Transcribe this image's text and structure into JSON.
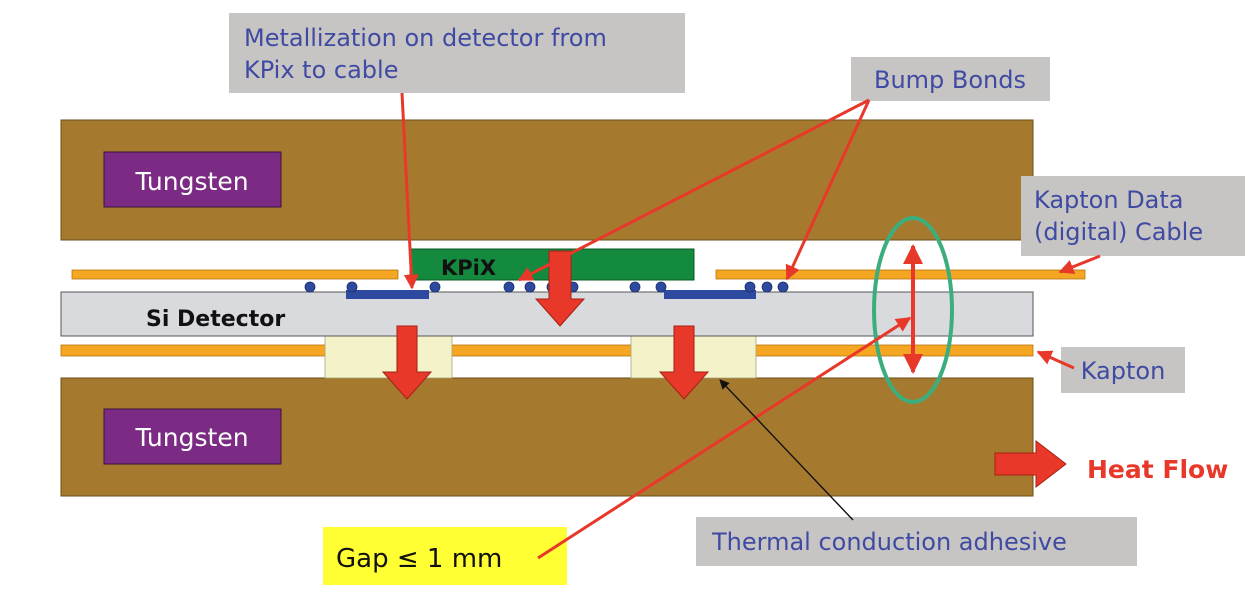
{
  "labels": {
    "metallization": [
      "Metallization on detector from",
      "KPix to cable"
    ],
    "bump_bonds": "Bump Bonds",
    "tungsten_top": "Tungsten",
    "tungsten_bottom": "Tungsten",
    "kpix": "KPiX",
    "si_detector": "Si Detector",
    "kapton_data_cable": [
      "Kapton Data",
      "(digital) Cable"
    ],
    "kapton": "Kapton",
    "heat_flow": "Heat Flow",
    "gap": "Gap ≤ 1 mm",
    "thermal_adhesive": "Thermal conduction adhesive"
  },
  "colors": {
    "tungsten": "#a67a2e",
    "tungsten_label_box": "#7b2b83",
    "kapton": "#f5a623",
    "kpix_chip": "#138a3d",
    "si_detector": "#d8dadd",
    "adhesive": "#f3f2c8",
    "pad": "#2e4aa0",
    "bump": "#2e4aa0",
    "callout_box": "#c7c5c3",
    "callout_text": "#3f4aa3",
    "arrow_red": "#e8382a",
    "gap_box": "#ffff33",
    "ellipse": "#3cae7e"
  }
}
